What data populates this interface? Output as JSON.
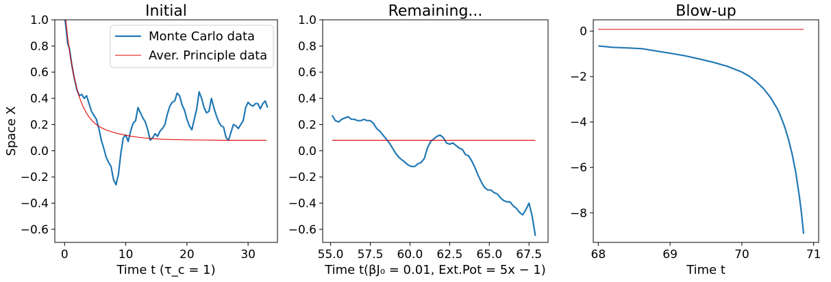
{
  "chart_data": [
    {
      "type": "line",
      "title": "Initial",
      "xlabel": "Time t (τ_c = 1)",
      "ylabel": "Space X",
      "xlim": [
        -1.6,
        34.8
      ],
      "ylim": [
        -0.7,
        1.0
      ],
      "xticks": [
        0,
        10,
        20,
        30
      ],
      "xtick_labels": [
        "0",
        "10",
        "20",
        "30"
      ],
      "yticks": [
        1.0,
        0.8,
        0.6,
        0.4,
        0.2,
        0.0,
        -0.2,
        -0.4,
        -0.6
      ],
      "ytick_labels": [
        "1.0",
        "0.8",
        "0.6",
        "0.4",
        "0.2",
        "0.0",
        "−0.2",
        "−0.4",
        "−0.6"
      ],
      "legend": {
        "placement": "top-right",
        "entries": [
          "Monte Carlo data",
          "Aver. Principle data"
        ]
      },
      "series": [
        {
          "name": "Monte Carlo data",
          "color": "#1f77b4",
          "x": [
            0,
            0.2,
            0.5,
            0.8,
            1.2,
            1.6,
            2.0,
            2.4,
            2.8,
            3.2,
            3.6,
            4.0,
            4.4,
            4.8,
            5.2,
            5.6,
            6.0,
            6.4,
            6.8,
            7.2,
            7.6,
            8.0,
            8.4,
            8.8,
            9.2,
            9.6,
            10.0,
            10.4,
            10.8,
            11.2,
            11.6,
            12.0,
            12.4,
            12.8,
            13.2,
            13.6,
            14.0,
            14.4,
            14.8,
            15.2,
            15.6,
            16.0,
            16.4,
            16.8,
            17.2,
            17.6,
            18.0,
            18.4,
            18.8,
            19.2,
            19.6,
            20.0,
            20.4,
            20.8,
            21.2,
            21.6,
            22.0,
            22.4,
            22.8,
            23.2,
            23.6,
            24.0,
            24.4,
            24.8,
            25.2,
            25.6,
            26.0,
            26.4,
            26.8,
            27.2,
            27.6,
            28.0,
            28.4,
            28.8,
            29.2,
            29.6,
            30.0,
            30.4,
            30.8,
            31.2,
            31.6,
            32.0,
            32.4,
            32.8,
            33.2
          ],
          "y": [
            1.03,
            0.95,
            0.82,
            0.78,
            0.65,
            0.55,
            0.47,
            0.42,
            0.43,
            0.4,
            0.42,
            0.36,
            0.3,
            0.27,
            0.24,
            0.17,
            0.08,
            0.02,
            -0.05,
            -0.09,
            -0.12,
            -0.22,
            -0.26,
            -0.18,
            -0.02,
            0.1,
            0.12,
            0.07,
            0.15,
            0.21,
            0.23,
            0.33,
            0.29,
            0.25,
            0.22,
            0.16,
            0.08,
            0.1,
            0.13,
            0.11,
            0.15,
            0.17,
            0.2,
            0.28,
            0.34,
            0.37,
            0.38,
            0.44,
            0.42,
            0.35,
            0.31,
            0.24,
            0.19,
            0.16,
            0.24,
            0.32,
            0.45,
            0.4,
            0.33,
            0.29,
            0.3,
            0.4,
            0.33,
            0.27,
            0.22,
            0.19,
            0.18,
            0.1,
            0.08,
            0.14,
            0.2,
            0.19,
            0.17,
            0.2,
            0.23,
            0.33,
            0.37,
            0.35,
            0.34,
            0.36,
            0.36,
            0.32,
            0.36,
            0.38,
            0.33
          ]
        },
        {
          "name": "Aver. Principle data",
          "color": "#e00000",
          "x": [
            0,
            0.5,
            1,
            1.5,
            2,
            2.5,
            3,
            3.5,
            4,
            4.5,
            5,
            5.5,
            6,
            6.5,
            7,
            8,
            9,
            10,
            11,
            12,
            13,
            14,
            15,
            16,
            18,
            20,
            22,
            24,
            26,
            28,
            30,
            33
          ],
          "y": [
            1.08,
            0.865,
            0.7,
            0.573,
            0.475,
            0.398,
            0.339,
            0.293,
            0.258,
            0.23,
            0.207,
            0.19,
            0.176,
            0.165,
            0.155,
            0.14,
            0.128,
            0.118,
            0.11,
            0.103,
            0.098,
            0.094,
            0.091,
            0.088,
            0.085,
            0.083,
            0.082,
            0.081,
            0.08,
            0.08,
            0.08,
            0.08
          ]
        }
      ]
    },
    {
      "type": "line",
      "title": "Remaining...",
      "xlabel": "Time t(βJ₀ = 0.01, Ext.Pot = 5x − 1)",
      "ylabel": "",
      "xlim": [
        54.5,
        68.7
      ],
      "ylim": [
        -0.7,
        1.0
      ],
      "xticks": [
        55.0,
        57.5,
        60.0,
        62.5,
        65.0,
        67.5
      ],
      "xtick_labels": [
        "55.0",
        "57.5",
        "60.0",
        "62.5",
        "65.0",
        "67.5"
      ],
      "yticks": [
        1.0,
        0.8,
        0.6,
        0.4,
        0.2,
        0.0,
        -0.2,
        -0.4,
        -0.6
      ],
      "ytick_labels": [
        "1.0",
        "0.8",
        "0.6",
        "0.4",
        "0.2",
        "0.0",
        "−0.2",
        "−0.4",
        "−0.6"
      ],
      "series": [
        {
          "color": "#1f77b4",
          "x": [
            55.1,
            55.3,
            55.5,
            55.7,
            55.9,
            56.1,
            56.3,
            56.5,
            56.7,
            56.9,
            57.1,
            57.3,
            57.5,
            57.7,
            57.9,
            58.1,
            58.3,
            58.5,
            58.7,
            58.9,
            59.1,
            59.3,
            59.5,
            59.7,
            59.9,
            60.1,
            60.3,
            60.5,
            60.7,
            60.9,
            61.1,
            61.3,
            61.5,
            61.7,
            61.9,
            62.1,
            62.3,
            62.5,
            62.7,
            62.9,
            63.1,
            63.3,
            63.5,
            63.7,
            63.9,
            64.1,
            64.3,
            64.5,
            64.7,
            64.9,
            65.1,
            65.3,
            65.5,
            65.7,
            65.9,
            66.1,
            66.3,
            66.5,
            66.7,
            66.9,
            67.1,
            67.3,
            67.5,
            67.7,
            67.9
          ],
          "y": [
            0.27,
            0.23,
            0.22,
            0.24,
            0.25,
            0.26,
            0.24,
            0.24,
            0.23,
            0.23,
            0.24,
            0.23,
            0.23,
            0.21,
            0.17,
            0.15,
            0.12,
            0.09,
            0.06,
            0.02,
            -0.02,
            -0.05,
            -0.07,
            -0.09,
            -0.11,
            -0.12,
            -0.12,
            -0.1,
            -0.09,
            -0.06,
            0.02,
            0.07,
            0.09,
            0.11,
            0.12,
            0.1,
            0.06,
            0.05,
            0.06,
            0.04,
            0.02,
            0.01,
            -0.03,
            -0.04,
            -0.08,
            -0.13,
            -0.19,
            -0.24,
            -0.28,
            -0.3,
            -0.3,
            -0.32,
            -0.33,
            -0.36,
            -0.38,
            -0.39,
            -0.39,
            -0.42,
            -0.44,
            -0.47,
            -0.49,
            -0.45,
            -0.4,
            -0.5,
            -0.65
          ]
        },
        {
          "color": "#e00000",
          "x": [
            55.1,
            67.9
          ],
          "y": [
            0.08,
            0.08
          ]
        }
      ]
    },
    {
      "type": "line",
      "title": "Blow-up",
      "xlabel": "Time t",
      "ylabel": "",
      "xlim": [
        67.93,
        71.07
      ],
      "ylim": [
        -9.3,
        0.5
      ],
      "xticks": [
        68,
        69,
        70,
        71
      ],
      "xtick_labels": [
        "68",
        "69",
        "70",
        "71"
      ],
      "yticks": [
        0,
        -2,
        -4,
        -6,
        -8
      ],
      "ytick_labels": [
        "0",
        "−2",
        "−4",
        "−6",
        "−8"
      ],
      "series": [
        {
          "color": "#1f77b4",
          "x": [
            68.0,
            68.2,
            68.4,
            68.6,
            68.8,
            69.0,
            69.2,
            69.4,
            69.6,
            69.8,
            70.0,
            70.1,
            70.2,
            70.3,
            70.4,
            70.5,
            70.55,
            70.6,
            70.65,
            70.7,
            70.75,
            70.8,
            70.83,
            70.86
          ],
          "y": [
            -0.65,
            -0.71,
            -0.74,
            -0.77,
            -0.87,
            -0.97,
            -1.08,
            -1.22,
            -1.37,
            -1.55,
            -1.8,
            -1.98,
            -2.22,
            -2.52,
            -2.92,
            -3.45,
            -3.82,
            -4.25,
            -4.78,
            -5.4,
            -6.2,
            -7.25,
            -8.0,
            -8.92
          ]
        },
        {
          "color": "#e00000",
          "x": [
            68.0,
            70.86
          ],
          "y": [
            0.08,
            0.08
          ]
        }
      ]
    }
  ]
}
